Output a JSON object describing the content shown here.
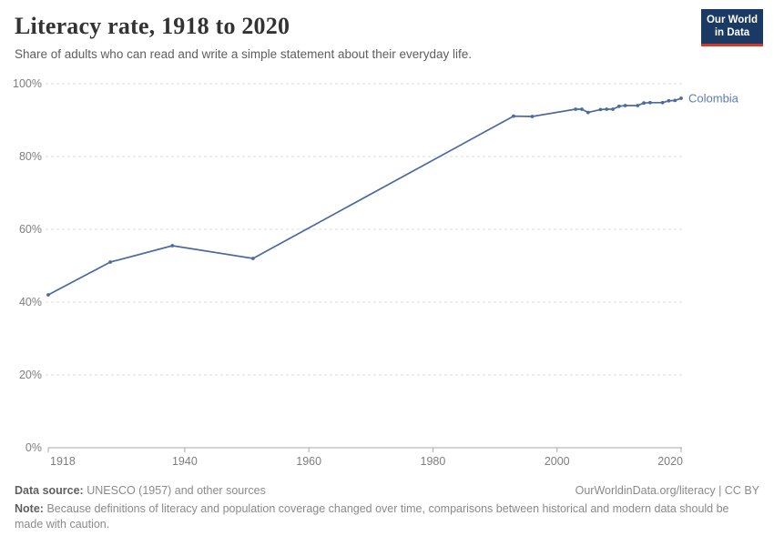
{
  "header": {
    "title": "Literacy rate, 1918 to 2020",
    "subtitle": "Share of adults who can read and write a simple statement about their everyday life.",
    "logo": {
      "line1": "Our World",
      "line2": "in Data"
    }
  },
  "chart_data": {
    "type": "line",
    "title": "Literacy rate, 1918 to 2020",
    "xlabel": "",
    "ylabel": "",
    "xlim": [
      1918,
      2020
    ],
    "ylim": [
      0,
      100
    ],
    "xticks": [
      1918,
      1940,
      1960,
      1980,
      2000,
      2020
    ],
    "yticks": [
      0,
      20,
      40,
      60,
      80,
      100
    ],
    "ytick_suffix": "%",
    "grid": "horizontal-dashed",
    "legend_position": "end-of-line-label",
    "end_label_color": "#5B7CB1",
    "series": [
      {
        "name": "Colombia",
        "color": "#4C6A9C",
        "points": [
          [
            1918,
            42.0
          ],
          [
            1928,
            51.0
          ],
          [
            1938,
            55.5
          ],
          [
            1951,
            52.0
          ],
          [
            1993,
            91.1
          ],
          [
            1996,
            91.0
          ],
          [
            2003,
            93.0
          ],
          [
            2004,
            93.0
          ],
          [
            2005,
            92.1
          ],
          [
            2007,
            92.9
          ],
          [
            2008,
            93.0
          ],
          [
            2009,
            93.0
          ],
          [
            2010,
            93.8
          ],
          [
            2011,
            94.0
          ],
          [
            2013,
            94.0
          ],
          [
            2014,
            94.7
          ],
          [
            2015,
            94.8
          ],
          [
            2017,
            94.8
          ],
          [
            2018,
            95.3
          ],
          [
            2019,
            95.4
          ],
          [
            2020,
            96.0
          ]
        ]
      }
    ]
  },
  "footer": {
    "datasource_label": "Data source:",
    "datasource_text": "UNESCO (1957) and other sources",
    "link": "OurWorldinData.org/literacy | CC BY",
    "note_label": "Note:",
    "note_text": "Because definitions of literacy and population coverage changed over time, comparisons between historical and modern data should be made with caution."
  },
  "colors": {
    "accent": "#4C6A9C",
    "logo_bg": "#1A3A63",
    "logo_red": "#D4382A",
    "grid": "#DDDDDD",
    "axis": "#A8A8A8",
    "tick_label": "#7E7E7E"
  }
}
